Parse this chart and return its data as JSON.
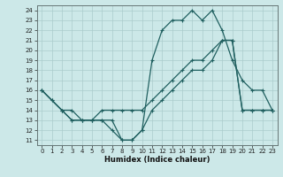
{
  "xlabel": "Humidex (Indice chaleur)",
  "background_color": "#cce8e8",
  "grid_color": "#aacccc",
  "line_color": "#206060",
  "xlim": [
    -0.5,
    23.5
  ],
  "ylim": [
    10.5,
    24.5
  ],
  "xticks": [
    0,
    1,
    2,
    3,
    4,
    5,
    6,
    7,
    8,
    9,
    10,
    11,
    12,
    13,
    14,
    15,
    16,
    17,
    18,
    19,
    20,
    21,
    22,
    23
  ],
  "yticks": [
    11,
    12,
    13,
    14,
    15,
    16,
    17,
    18,
    19,
    20,
    21,
    22,
    23,
    24
  ],
  "line1_x": [
    0,
    1,
    2,
    3,
    4,
    5,
    6,
    7,
    8,
    9,
    10,
    11,
    12,
    13,
    14,
    15,
    16,
    17,
    18,
    19,
    20,
    21,
    22,
    23
  ],
  "line1_y": [
    16,
    15,
    14,
    13,
    13,
    13,
    13,
    12,
    11,
    11,
    12,
    19,
    22,
    23,
    23,
    24,
    23,
    24,
    22,
    19,
    17,
    16,
    16,
    14
  ],
  "line2_x": [
    0,
    1,
    2,
    3,
    4,
    5,
    6,
    7,
    8,
    9,
    10,
    11,
    12,
    13,
    14,
    15,
    16,
    17,
    18,
    19,
    20,
    21,
    22,
    23
  ],
  "line2_y": [
    16,
    15,
    14,
    14,
    13,
    13,
    14,
    14,
    14,
    14,
    14,
    15,
    16,
    17,
    18,
    19,
    19,
    20,
    21,
    21,
    14,
    14,
    14,
    14
  ],
  "line3_x": [
    0,
    2,
    3,
    4,
    5,
    6,
    7,
    8,
    9,
    10,
    11,
    12,
    13,
    14,
    15,
    16,
    17,
    18,
    19,
    20,
    21,
    22,
    23
  ],
  "line3_y": [
    16,
    14,
    13,
    13,
    13,
    13,
    13,
    11,
    11,
    12,
    14,
    15,
    16,
    17,
    18,
    18,
    19,
    21,
    21,
    14,
    14,
    14,
    14
  ]
}
